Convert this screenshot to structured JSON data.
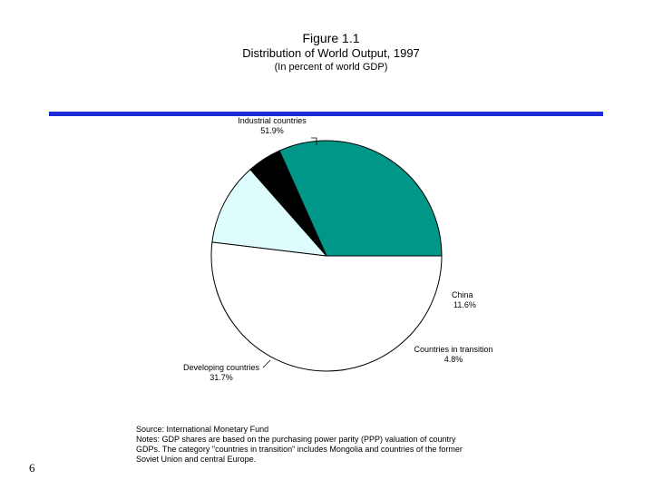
{
  "chart_data": {
    "type": "pie",
    "figure_number": "Figure 1.1",
    "title": "Distribution of World Output, 1997",
    "subtitle": "(In percent of world GDP)",
    "slices": [
      {
        "name": "Industrial countries",
        "label": "Industrial countries",
        "value_text": "51.9%",
        "value": 51.9,
        "color": "#ffffff"
      },
      {
        "name": "China",
        "label": "China",
        "value_text": "11.6%",
        "value": 11.6,
        "color": "#dffcfd"
      },
      {
        "name": "Countries in transition",
        "label": "Countries in transition",
        "value_text": "4.8%",
        "value": 4.8,
        "color": "#000000"
      },
      {
        "name": "Developing countries",
        "label": "Developing countries",
        "value_text": "31.7%",
        "value": 31.7,
        "color": "#009688"
      }
    ],
    "start_angle_deg": 0,
    "direction": "clockwise"
  },
  "notes": {
    "source": "Source: International Monetary Fund",
    "notes_line1": "Notes: GDP shares are based on the purchasing power parity (PPP) valuation of country",
    "notes_line2": "GDPs. The category \"countries in transition\" includes Mongolia and countries of the former",
    "notes_line3": "Soviet Union and central Europe."
  },
  "page_number": "6",
  "colors": {
    "rule": "#1c2bd6",
    "outline": "#000000"
  }
}
